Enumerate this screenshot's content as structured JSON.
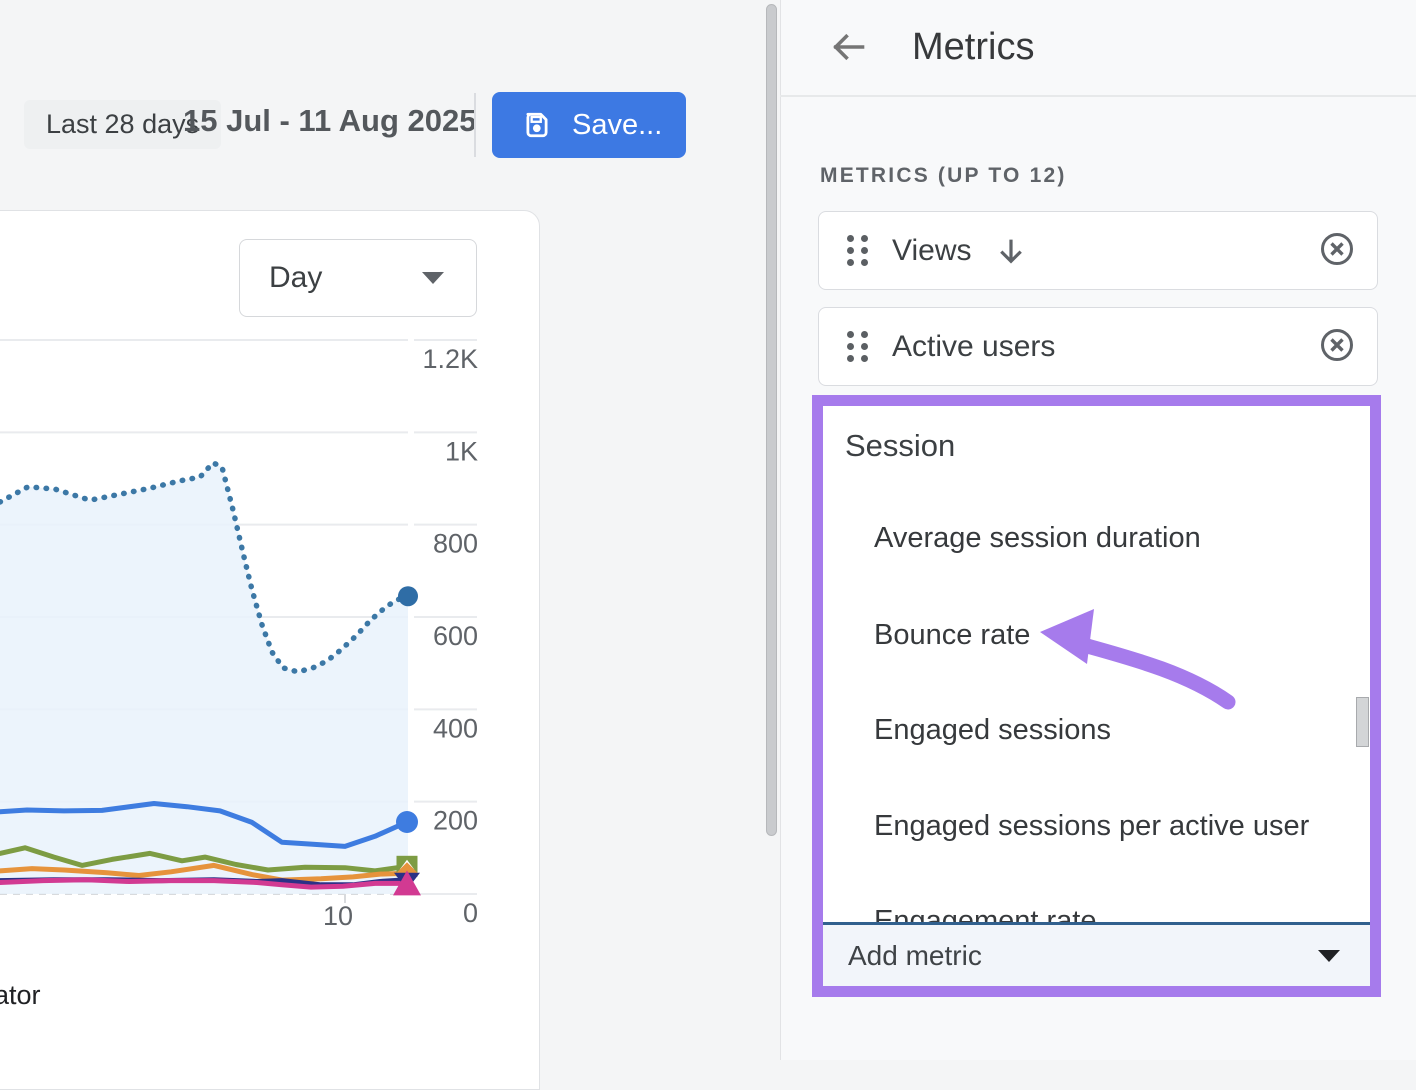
{
  "header": {
    "date_range_chip": "Last 28 days",
    "date_range": "15 Jul - 11 Aug 2025",
    "save_label": "Save..."
  },
  "chart": {
    "interval_label": "Day",
    "cut_off_text": "ator"
  },
  "chart_data": {
    "type": "line",
    "title": "",
    "xlabel": "",
    "ylabel": "",
    "ylim": [
      0,
      1200
    ],
    "grid": "horizontal",
    "y_axis": {
      "ticks": [
        {
          "label": "1.2K",
          "value": 1200
        },
        {
          "label": "1K",
          "value": 1000
        },
        {
          "label": "800",
          "value": 800
        },
        {
          "label": "600",
          "value": 600
        },
        {
          "label": "400",
          "value": 400
        },
        {
          "label": "200",
          "value": 200
        },
        {
          "label": "0",
          "value": 0
        }
      ]
    },
    "x_axis": {
      "tick_label": "10",
      "tick_x": 338
    },
    "area_fill": "#e9f2fb",
    "series": [
      {
        "name": "views-dotted-line",
        "style": "dotted",
        "color": "#3c78a6",
        "marker": "circle",
        "marker_color": "#2f6da6",
        "points": [
          [
            0,
            849
          ],
          [
            28,
            882
          ],
          [
            55,
            877
          ],
          [
            90,
            853
          ],
          [
            120,
            866
          ],
          [
            150,
            879
          ],
          [
            180,
            895
          ],
          [
            200,
            903
          ],
          [
            213,
            934
          ],
          [
            222,
            925
          ],
          [
            233,
            832
          ],
          [
            243,
            739
          ],
          [
            252,
            659
          ],
          [
            262,
            583
          ],
          [
            272,
            524
          ],
          [
            283,
            490
          ],
          [
            298,
            481
          ],
          [
            313,
            490
          ],
          [
            327,
            505
          ],
          [
            341,
            529
          ],
          [
            356,
            559
          ],
          [
            371,
            594
          ],
          [
            386,
            622
          ],
          [
            397,
            637
          ],
          [
            408,
            645
          ]
        ]
      },
      {
        "name": "blue-line",
        "style": "solid",
        "color": "#3e7ce0",
        "marker": "circle",
        "points": [
          [
            0,
            178
          ],
          [
            27,
            182
          ],
          [
            64,
            180
          ],
          [
            102,
            181
          ],
          [
            154,
            196
          ],
          [
            187,
            189
          ],
          [
            220,
            180
          ],
          [
            252,
            155
          ],
          [
            282,
            112
          ],
          [
            311,
            108
          ],
          [
            345,
            103
          ],
          [
            375,
            125
          ],
          [
            407,
            156
          ]
        ]
      },
      {
        "name": "green-line",
        "style": "solid",
        "color": "#7d9c43",
        "marker": "square-chevron",
        "points": [
          [
            0,
            88
          ],
          [
            25,
            100
          ],
          [
            54,
            80
          ],
          [
            82,
            62
          ],
          [
            112,
            75
          ],
          [
            150,
            88
          ],
          [
            182,
            72
          ],
          [
            205,
            80
          ],
          [
            236,
            64
          ],
          [
            268,
            52
          ],
          [
            305,
            58
          ],
          [
            345,
            57
          ],
          [
            375,
            50
          ],
          [
            407,
            60
          ]
        ]
      },
      {
        "name": "orange-line",
        "style": "solid",
        "color": "#e6933c",
        "marker": "diamond",
        "points": [
          [
            0,
            50
          ],
          [
            32,
            55
          ],
          [
            64,
            52
          ],
          [
            107,
            46
          ],
          [
            139,
            40
          ],
          [
            171,
            48
          ],
          [
            214,
            62
          ],
          [
            252,
            42
          ],
          [
            282,
            30
          ],
          [
            321,
            33
          ],
          [
            353,
            37
          ],
          [
            380,
            43
          ],
          [
            407,
            45
          ]
        ]
      },
      {
        "name": "navy-line",
        "style": "solid",
        "color": "#2b3186",
        "marker": "triangle-down",
        "points": [
          [
            0,
            29
          ],
          [
            54,
            31
          ],
          [
            107,
            31
          ],
          [
            161,
            29
          ],
          [
            214,
            31
          ],
          [
            257,
            27
          ],
          [
            282,
            29
          ],
          [
            321,
            20
          ],
          [
            353,
            20
          ],
          [
            380,
            27
          ],
          [
            407,
            31
          ]
        ]
      },
      {
        "name": "magenta-line",
        "style": "solid",
        "color": "#d23a92",
        "marker": "triangle-up",
        "points": [
          [
            0,
            25
          ],
          [
            43,
            29
          ],
          [
            86,
            31
          ],
          [
            129,
            27
          ],
          [
            171,
            29
          ],
          [
            214,
            29
          ],
          [
            257,
            25
          ],
          [
            282,
            20
          ],
          [
            311,
            15
          ],
          [
            343,
            17
          ],
          [
            375,
            23
          ],
          [
            407,
            23
          ]
        ]
      }
    ]
  },
  "panel": {
    "title": "Metrics",
    "section_label": "METRICS (UP TO 12)",
    "selected_metrics": [
      {
        "label": "Views"
      },
      {
        "label": "Active users"
      }
    ],
    "dropdown": {
      "group": "Session",
      "items": [
        "Average session duration",
        "Bounce rate",
        "Engaged sessions",
        "Engaged sessions per active user",
        "Engagement rate"
      ]
    },
    "add_metric_label": "Add metric"
  },
  "colors": {
    "accent_blue": "#3d79e3",
    "highlight_purple": "#a67bec",
    "focus_underline": "#31608e",
    "text_primary": "#3c4043",
    "text_secondary": "#5f6368"
  }
}
